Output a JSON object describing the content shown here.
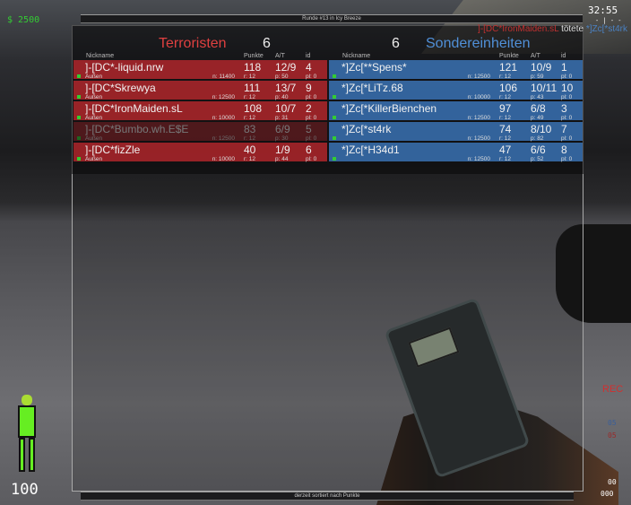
{
  "hud": {
    "money": "$ 2500",
    "timer": "32:55",
    "timer_sub": "- | - -",
    "health": "100",
    "rec": "REC",
    "ct_count": "05",
    "t_count": "05",
    "ammo_clip": "00",
    "ammo_total": "000",
    "accent_money": "#33cc33"
  },
  "round_bar": "Runde #13 in Icy Breeze",
  "footer_bar": "derzeit sortiert nach Punkte",
  "killfeed": {
    "killer": "]-[DC*IronMaiden.sL",
    "verb": "tötete",
    "victim": "*]Zc[*st4rk"
  },
  "columns": {
    "nickname": "Nickname",
    "points": "Punkte",
    "at": "A/T",
    "id": "id"
  },
  "terrorists": {
    "name": "Terroristen",
    "score": "6",
    "color": "#e04040",
    "players": [
      {
        "nick": "]-[DC*-liquid.nrw",
        "loc": "Außen",
        "n": "n: 11400",
        "points": "118",
        "at": "12/9",
        "id": "4",
        "r": "r: 12",
        "p": "p: 50",
        "pl": "pl: 0",
        "dead": false
      },
      {
        "nick": "]-[DC*Skrewya",
        "loc": "Außen",
        "n": "n: 12500",
        "points": "111",
        "at": "13/7",
        "id": "9",
        "r": "r: 12",
        "p": "p: 40",
        "pl": "pl: 0",
        "dead": false
      },
      {
        "nick": "]-[DC*IronMaiden.sL",
        "loc": "Außen",
        "n": "n: 10000",
        "points": "108",
        "at": "10/7",
        "id": "2",
        "r": "r: 12",
        "p": "p: 31",
        "pl": "pl: 0",
        "dead": false
      },
      {
        "nick": "]-[DC*Bumbo.wh.E$E",
        "loc": "Außen",
        "n": "n: 12500",
        "points": "83",
        "at": "6/9",
        "id": "5",
        "r": "r: 12",
        "p": "p: 30",
        "pl": "pl: 0",
        "dead": true
      },
      {
        "nick": "]-[DC*fizZle",
        "loc": "Außen",
        "n": "n: 10000",
        "points": "40",
        "at": "1/9",
        "id": "6",
        "r": "r: 12",
        "p": "p: 44",
        "pl": "pl: 0",
        "dead": false
      }
    ]
  },
  "counter_terrorists": {
    "name": "Sondereinheiten",
    "score": "6",
    "color": "#5090d8",
    "players": [
      {
        "nick": "*]Zc[**Spens*",
        "loc": "",
        "n": "n: 12500",
        "points": "121",
        "at": "10/9",
        "id": "1",
        "r": "r: 12",
        "p": "p: 59",
        "pl": "pl: 0",
        "dead": false
      },
      {
        "nick": "*]Zc[*LiTz.68",
        "loc": "",
        "n": "n: 10000",
        "points": "106",
        "at": "10/11",
        "id": "10",
        "r": "r: 12",
        "p": "p: 43",
        "pl": "pl: 0",
        "dead": false
      },
      {
        "nick": "*]Zc[*KillerBienchen",
        "loc": "",
        "n": "n: 12500",
        "points": "97",
        "at": "6/8",
        "id": "3",
        "r": "r: 12",
        "p": "p: 49",
        "pl": "pl: 0",
        "dead": false
      },
      {
        "nick": "*]Zc[*st4rk",
        "loc": "",
        "n": "n: 12500",
        "points": "74",
        "at": "8/10",
        "id": "7",
        "r": "r: 12",
        "p": "p: 82",
        "pl": "pl: 0",
        "dead": false
      },
      {
        "nick": "*]Zc[*H34d1",
        "loc": "",
        "n": "n: 12500",
        "points": "47",
        "at": "6/6",
        "id": "8",
        "r": "r: 12",
        "p": "p: 52",
        "pl": "pl: 0",
        "dead": false
      }
    ]
  }
}
